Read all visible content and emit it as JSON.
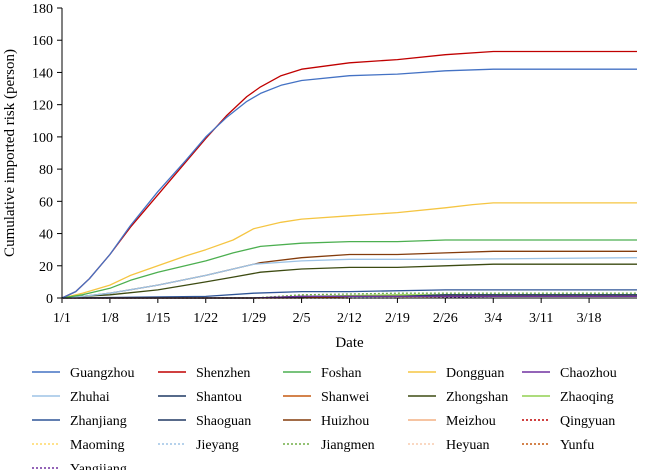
{
  "chart_data": {
    "type": "line",
    "xlabel": "Date",
    "ylabel": "Cumulative imported risk (person)",
    "ylim": [
      0,
      180
    ],
    "yticks": [
      0,
      20,
      40,
      60,
      80,
      100,
      120,
      140,
      160,
      180
    ],
    "xlim": [
      0,
      84
    ],
    "xticks": [
      {
        "day": 0,
        "label": "1/1"
      },
      {
        "day": 7,
        "label": "1/8"
      },
      {
        "day": 14,
        "label": "1/15"
      },
      {
        "day": 21,
        "label": "1/22"
      },
      {
        "day": 28,
        "label": "1/29"
      },
      {
        "day": 35,
        "label": "2/5"
      },
      {
        "day": 42,
        "label": "2/12"
      },
      {
        "day": 49,
        "label": "2/19"
      },
      {
        "day": 56,
        "label": "2/26"
      },
      {
        "day": 63,
        "label": "3/4"
      },
      {
        "day": 70,
        "label": "3/11"
      },
      {
        "day": 77,
        "label": "3/18"
      }
    ],
    "grid": false,
    "legend_position": "bottom",
    "series": [
      {
        "name": "Guangzhou",
        "color": "#4472c4",
        "dash": "",
        "points": [
          [
            0,
            0
          ],
          [
            2,
            4
          ],
          [
            4,
            12
          ],
          [
            7,
            27
          ],
          [
            10,
            45
          ],
          [
            14,
            66
          ],
          [
            18,
            85
          ],
          [
            21,
            100
          ],
          [
            24,
            112
          ],
          [
            27,
            122
          ],
          [
            29,
            127
          ],
          [
            32,
            132
          ],
          [
            35,
            135
          ],
          [
            42,
            138
          ],
          [
            49,
            139
          ],
          [
            56,
            141
          ],
          [
            63,
            142
          ],
          [
            70,
            142
          ],
          [
            77,
            142
          ],
          [
            84,
            142
          ]
        ]
      },
      {
        "name": "Shenzhen",
        "color": "#c00000",
        "dash": "",
        "points": [
          [
            0,
            0
          ],
          [
            2,
            4
          ],
          [
            4,
            12
          ],
          [
            7,
            27
          ],
          [
            10,
            44
          ],
          [
            14,
            64
          ],
          [
            18,
            84
          ],
          [
            21,
            99
          ],
          [
            24,
            113
          ],
          [
            27,
            125
          ],
          [
            29,
            131
          ],
          [
            32,
            138
          ],
          [
            35,
            142
          ],
          [
            42,
            146
          ],
          [
            49,
            148
          ],
          [
            56,
            151
          ],
          [
            63,
            153
          ],
          [
            70,
            153
          ],
          [
            77,
            153
          ],
          [
            84,
            153
          ]
        ]
      },
      {
        "name": "Foshan",
        "color": "#4caf50",
        "dash": "",
        "points": [
          [
            0,
            0
          ],
          [
            3,
            2
          ],
          [
            7,
            6
          ],
          [
            10,
            11
          ],
          [
            14,
            16
          ],
          [
            18,
            20
          ],
          [
            21,
            23
          ],
          [
            25,
            28
          ],
          [
            29,
            32
          ],
          [
            35,
            34
          ],
          [
            42,
            35
          ],
          [
            49,
            35
          ],
          [
            56,
            36
          ],
          [
            63,
            36
          ],
          [
            70,
            36
          ],
          [
            77,
            36
          ],
          [
            84,
            36
          ]
        ]
      },
      {
        "name": "Dongguan",
        "color": "#f5c542",
        "dash": "",
        "points": [
          [
            0,
            0
          ],
          [
            3,
            3
          ],
          [
            7,
            8
          ],
          [
            10,
            14
          ],
          [
            14,
            20
          ],
          [
            18,
            26
          ],
          [
            21,
            30
          ],
          [
            25,
            36
          ],
          [
            28,
            43
          ],
          [
            32,
            47
          ],
          [
            35,
            49
          ],
          [
            42,
            51
          ],
          [
            49,
            53
          ],
          [
            56,
            56
          ],
          [
            60,
            58
          ],
          [
            63,
            59
          ],
          [
            70,
            59
          ],
          [
            77,
            59
          ],
          [
            84,
            59
          ]
        ]
      },
      {
        "name": "Chaozhou",
        "color": "#7030a0",
        "dash": "",
        "points": [
          [
            0,
            0
          ],
          [
            28,
            0
          ],
          [
            35,
            1
          ],
          [
            84,
            1
          ]
        ]
      },
      {
        "name": "Zhuhai",
        "color": "#9dc3e6",
        "dash": "",
        "points": [
          [
            0,
            0
          ],
          [
            3,
            1
          ],
          [
            7,
            3
          ],
          [
            14,
            8
          ],
          [
            21,
            14
          ],
          [
            25,
            18
          ],
          [
            28,
            21
          ],
          [
            35,
            23
          ],
          [
            42,
            24
          ],
          [
            56,
            24
          ],
          [
            84,
            25
          ]
        ]
      },
      {
        "name": "Shantou",
        "color": "#1f3864",
        "dash": "",
        "points": [
          [
            0,
            0
          ],
          [
            28,
            0
          ],
          [
            35,
            1
          ],
          [
            49,
            1
          ],
          [
            56,
            2
          ],
          [
            84,
            2
          ]
        ]
      },
      {
        "name": "Shanwei",
        "color": "#c55a11",
        "dash": "",
        "points": [
          [
            0,
            0
          ],
          [
            35,
            0
          ],
          [
            42,
            1
          ],
          [
            84,
            1
          ]
        ]
      },
      {
        "name": "Zhongshan",
        "color": "#3d4b12",
        "dash": "",
        "points": [
          [
            0,
            0
          ],
          [
            3,
            1
          ],
          [
            7,
            2
          ],
          [
            14,
            5
          ],
          [
            21,
            10
          ],
          [
            25,
            13
          ],
          [
            29,
            16
          ],
          [
            35,
            18
          ],
          [
            42,
            19
          ],
          [
            49,
            19
          ],
          [
            56,
            20
          ],
          [
            63,
            21
          ],
          [
            70,
            21
          ],
          [
            77,
            21
          ],
          [
            84,
            21
          ]
        ]
      },
      {
        "name": "Zhaoqing",
        "color": "#92d050",
        "dash": "",
        "points": [
          [
            0,
            0
          ],
          [
            28,
            0
          ],
          [
            35,
            1
          ],
          [
            49,
            2
          ],
          [
            63,
            2
          ],
          [
            84,
            2
          ]
        ]
      },
      {
        "name": "Zhanjiang",
        "color": "#2f5597",
        "dash": "",
        "points": [
          [
            0,
            0
          ],
          [
            21,
            1
          ],
          [
            28,
            3
          ],
          [
            35,
            4
          ],
          [
            42,
            4
          ],
          [
            56,
            5
          ],
          [
            84,
            5
          ]
        ]
      },
      {
        "name": "Shaoguan",
        "color": "#203864",
        "dash": "",
        "points": [
          [
            0,
            0
          ],
          [
            28,
            0
          ],
          [
            42,
            1
          ],
          [
            63,
            1
          ],
          [
            84,
            1
          ]
        ]
      },
      {
        "name": "Huizhou",
        "color": "#843c0c",
        "dash": "",
        "points": [
          [
            0,
            0
          ],
          [
            3,
            1
          ],
          [
            7,
            3
          ],
          [
            14,
            8
          ],
          [
            21,
            14
          ],
          [
            25,
            18
          ],
          [
            29,
            22
          ],
          [
            35,
            25
          ],
          [
            42,
            27
          ],
          [
            49,
            27
          ],
          [
            56,
            28
          ],
          [
            63,
            29
          ],
          [
            70,
            29
          ],
          [
            77,
            29
          ],
          [
            84,
            29
          ]
        ]
      },
      {
        "name": "Meizhou",
        "color": "#f4b183",
        "dash": "",
        "points": [
          [
            0,
            0
          ],
          [
            28,
            0
          ],
          [
            35,
            1
          ],
          [
            84,
            1
          ]
        ]
      },
      {
        "name": "Qingyuan",
        "color": "#c00000",
        "dash": "2,2",
        "points": [
          [
            0,
            0
          ],
          [
            28,
            0
          ],
          [
            42,
            1
          ],
          [
            84,
            1
          ]
        ]
      },
      {
        "name": "Maoming",
        "color": "#ffd966",
        "dash": "2,2",
        "points": [
          [
            0,
            0
          ],
          [
            28,
            0
          ],
          [
            42,
            1
          ],
          [
            84,
            1
          ]
        ]
      },
      {
        "name": "Jieyang",
        "color": "#9dc3e6",
        "dash": "2,2",
        "points": [
          [
            0,
            0
          ],
          [
            35,
            0
          ],
          [
            49,
            1
          ],
          [
            84,
            1
          ]
        ]
      },
      {
        "name": "Jiangmen",
        "color": "#70ad47",
        "dash": "2,2",
        "points": [
          [
            0,
            0
          ],
          [
            28,
            0
          ],
          [
            35,
            2
          ],
          [
            49,
            3
          ],
          [
            84,
            3
          ]
        ]
      },
      {
        "name": "Heyuan",
        "color": "#f8cbad",
        "dash": "2,2",
        "points": [
          [
            0,
            0
          ],
          [
            42,
            0
          ],
          [
            56,
            1
          ],
          [
            84,
            1
          ]
        ]
      },
      {
        "name": "Yunfu",
        "color": "#c55a11",
        "dash": "2,2",
        "points": [
          [
            0,
            0
          ],
          [
            42,
            0
          ],
          [
            56,
            1
          ],
          [
            84,
            1
          ]
        ]
      },
      {
        "name": "Yangjiang",
        "color": "#7030a0",
        "dash": "2,2",
        "points": [
          [
            0,
            0
          ],
          [
            49,
            0
          ],
          [
            63,
            1
          ],
          [
            84,
            1
          ]
        ]
      }
    ]
  }
}
